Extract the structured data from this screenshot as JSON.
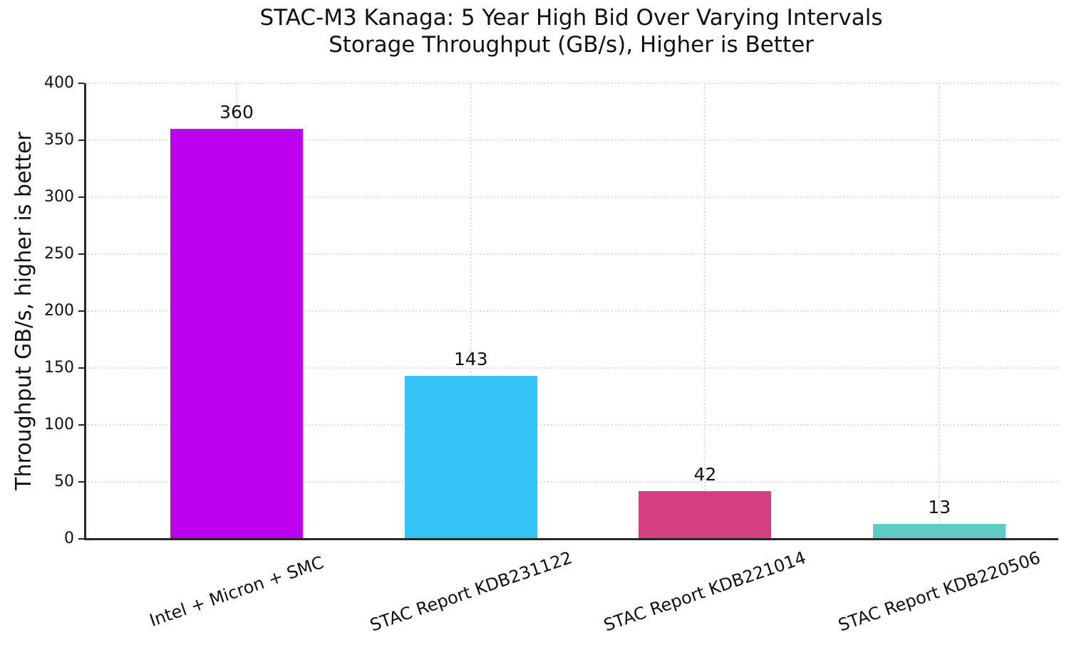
{
  "background": "#ffffff",
  "text_color": "#111111",
  "axis_color": "#262626",
  "grid_color": "#dcdcdc",
  "chart_data": {
    "type": "bar",
    "title": "STAC-M3 Kanaga: 5 Year High Bid Over Varying Intervals",
    "subtitle": "Storage Throughput (GB/s), Higher is Better",
    "ylabel": "Throughput GB/s, higher is better",
    "xlabel": "",
    "categories": [
      "Intel + Micron + SMC",
      "STAC Report KDB231122",
      "STAC Report KDB221014",
      "STAC Report KDB220506"
    ],
    "values": [
      360,
      143,
      42,
      13
    ],
    "value_labels": [
      "360",
      "143",
      "42",
      "13"
    ],
    "bar_colors": [
      "#be00f0",
      "#33c4f5",
      "#d43f82",
      "#5fccc4"
    ],
    "ylim": [
      0,
      400
    ],
    "yticks": [
      0,
      50,
      100,
      150,
      200,
      250,
      300,
      350,
      400
    ],
    "grid": "dotted horizontal and vertical",
    "legend_position": "none",
    "xtick_rotation_deg": 19
  }
}
